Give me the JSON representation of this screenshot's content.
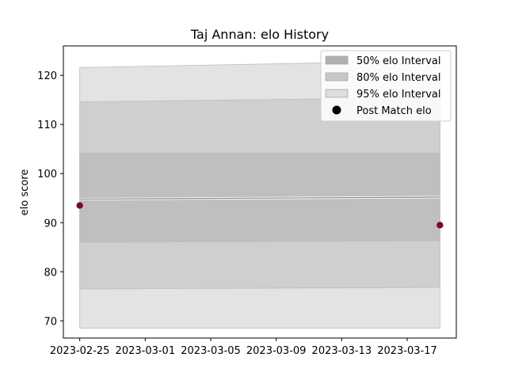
{
  "chart_data": {
    "type": "area",
    "title": "Taj Annan: elo History",
    "xlabel": "",
    "ylabel": "elo score",
    "x_ticks": [
      "2023-02-25",
      "2023-03-01",
      "2023-03-05",
      "2023-03-09",
      "2023-03-13",
      "2023-03-17"
    ],
    "y_ticks": [
      "70",
      "80",
      "90",
      "100",
      "110",
      "120"
    ],
    "xlim": [
      "2023-02-24",
      "2023-03-20"
    ],
    "ylim": [
      66.5,
      126
    ],
    "x": [
      "2023-02-25",
      "2023-03-19"
    ],
    "mean": [
      94.8,
      95.2
    ],
    "bands": [
      {
        "name": "95% elo Interval",
        "lower": [
          68.5,
          68.5
        ],
        "upper": [
          121.6,
          123.0
        ],
        "color": "#e3e3e3"
      },
      {
        "name": "80% elo Interval",
        "lower": [
          76.5,
          76.8
        ],
        "upper": [
          114.6,
          115.5
        ],
        "color": "#cfcfcf"
      },
      {
        "name": "50% elo Interval",
        "lower": [
          86.0,
          86.3
        ],
        "upper": [
          104.2,
          104.2
        ],
        "color": "#bfbfbf"
      }
    ],
    "points": {
      "name": "Post Match elo",
      "x": [
        "2023-02-25",
        "2023-03-19"
      ],
      "y": [
        93.5,
        89.5
      ],
      "color": "#7a0a2a"
    },
    "grid": false,
    "legend_position": "top-right",
    "legend": [
      {
        "label": "50% elo Interval",
        "kind": "patch",
        "color": "#b0b0b0"
      },
      {
        "label": "80% elo Interval",
        "kind": "patch",
        "color": "#c8c8c8"
      },
      {
        "label": "95% elo Interval",
        "kind": "patch",
        "color": "#dddddd"
      },
      {
        "label": "Post Match elo",
        "kind": "marker",
        "color": "#000000"
      }
    ]
  }
}
